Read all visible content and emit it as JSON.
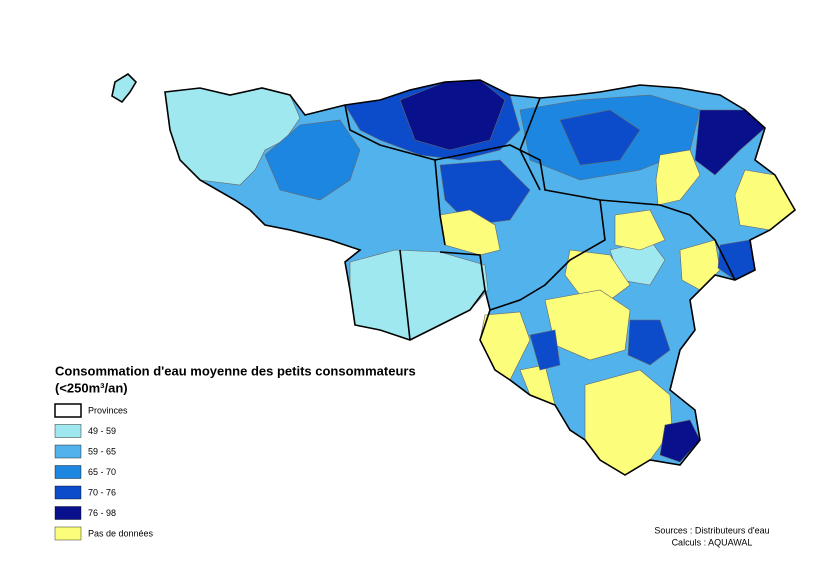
{
  "legend": {
    "title": "Consommation d'eau moyenne des petits consommateurs",
    "subtitle": "(<250m³/an)",
    "items": [
      {
        "label": "Provinces",
        "color": "#ffffff"
      },
      {
        "label": "49 - 59",
        "color": "#a0e8ef"
      },
      {
        "label": "59 - 65",
        "color": "#52b2eb"
      },
      {
        "label": "65 - 70",
        "color": "#1d86e0"
      },
      {
        "label": "70 - 76",
        "color": "#0c4ccb"
      },
      {
        "label": "76 - 98",
        "color": "#08108c"
      },
      {
        "label": "Pas de données",
        "color": "#fdfd7c"
      }
    ]
  },
  "sources": "Sources : Distributeurs d'eau",
  "calculs": "Calculs : AQUAWAL"
}
